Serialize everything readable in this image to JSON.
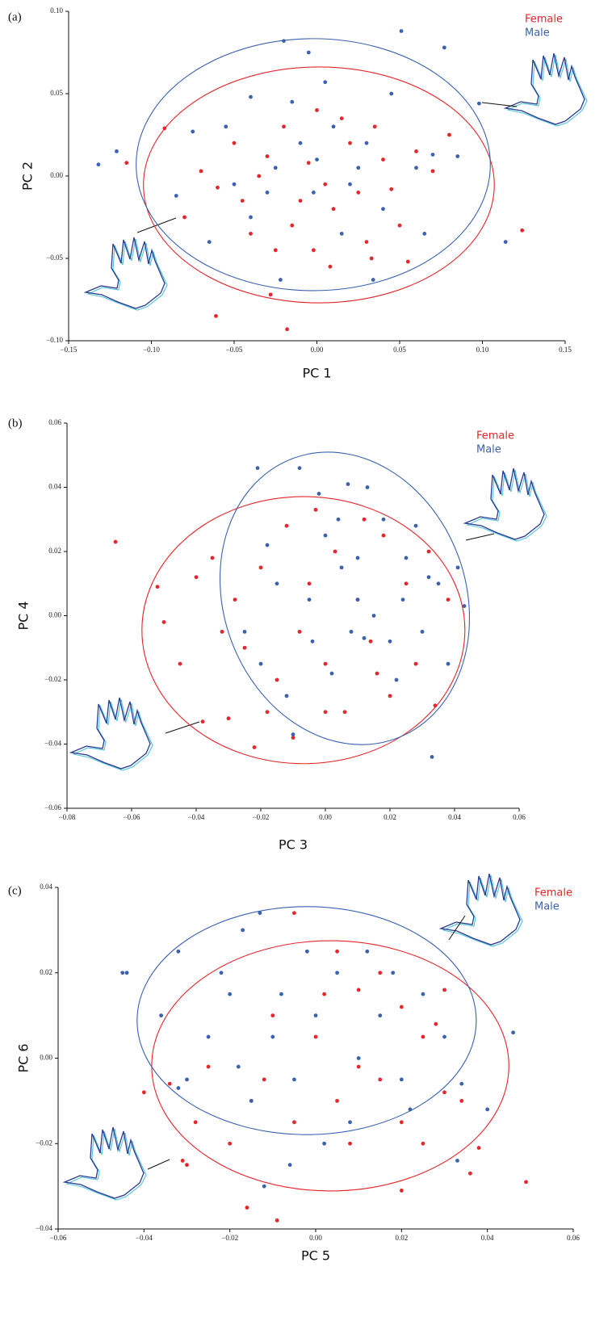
{
  "chart_data": [
    {
      "type": "scatter",
      "panel": "(a)",
      "xlabel": "PC 1",
      "ylabel": "PC 2",
      "legend": "upper right",
      "xlim": [
        -0.15,
        0.15
      ],
      "ylim": [
        -0.1,
        0.1
      ],
      "xticks": [
        {
          "value": -0.15,
          "label": "−0.15"
        },
        {
          "value": -0.1,
          "label": "−0.10"
        },
        {
          "value": -0.05,
          "label": "−0.05"
        },
        {
          "value": 0,
          "label": "0.00"
        },
        {
          "value": 0.05,
          "label": "0.05"
        },
        {
          "value": 0.1,
          "label": "0.10"
        },
        {
          "value": 0.15,
          "label": "0.15"
        }
      ],
      "yticks": [
        {
          "value": -0.1,
          "label": "−0.10"
        },
        {
          "value": -0.05,
          "label": "−0.05"
        },
        {
          "value": 0,
          "label": "0.00"
        },
        {
          "value": 0.05,
          "label": "0.05"
        },
        {
          "value": 0.1,
          "label": "0.10"
        }
      ],
      "series": [
        {
          "name": "Female",
          "color": "#e5262a",
          "x": [
            -0.018,
            -0.061,
            0.124,
            -0.115,
            -0.092,
            -0.08,
            0.07,
            -0.06,
            -0.04,
            -0.03,
            -0.02,
            -0.01,
            0.0,
            0.01,
            0.02,
            0.03,
            0.04,
            0.05,
            0.06,
            -0.05,
            -0.045,
            -0.025,
            -0.005,
            0.005,
            0.015,
            0.025,
            0.035,
            0.045,
            -0.035,
            -0.015,
            0.008,
            -0.07,
            0.08,
            -0.002,
            0.033,
            0.055,
            -0.028
          ],
          "values": [
            -0.093,
            -0.085,
            -0.033,
            0.008,
            0.029,
            -0.025,
            0.003,
            -0.007,
            -0.035,
            0.012,
            0.03,
            -0.015,
            0.04,
            -0.02,
            0.02,
            -0.04,
            0.01,
            -0.03,
            0.015,
            0.02,
            -0.015,
            -0.045,
            0.008,
            -0.005,
            0.035,
            -0.01,
            0.03,
            -0.008,
            0.0,
            -0.03,
            -0.055,
            0.003,
            0.025,
            -0.045,
            -0.05,
            -0.052,
            -0.072
          ],
          "ellipse": {
            "cx": 0.0012,
            "cy": -0.0054,
            "rx": 0.106,
            "ry": 0.0716,
            "angle": 0
          }
        },
        {
          "name": "Male",
          "color": "#3a62b0",
          "x": [
            0.051,
            0.077,
            -0.02,
            -0.132,
            -0.121,
            0.114,
            0.098,
            -0.022,
            0.034,
            -0.005,
            0.005,
            -0.04,
            0.045,
            -0.075,
            -0.085,
            0.065,
            0.07,
            -0.01,
            0.0,
            0.01,
            -0.03,
            0.02,
            -0.055,
            0.03,
            -0.04,
            0.04,
            -0.015,
            0.015,
            -0.065,
            0.06,
            -0.002,
            0.025,
            -0.05,
            0.085,
            -0.025
          ],
          "values": [
            0.088,
            0.078,
            0.082,
            0.007,
            0.015,
            -0.04,
            0.044,
            -0.063,
            -0.063,
            0.075,
            0.057,
            0.048,
            0.05,
            0.027,
            -0.012,
            -0.035,
            0.013,
            0.02,
            0.01,
            0.03,
            -0.01,
            -0.005,
            0.03,
            0.02,
            -0.025,
            -0.02,
            0.045,
            -0.035,
            -0.04,
            0.005,
            -0.01,
            0.005,
            -0.005,
            0.012,
            0.005
          ],
          "ellipse": {
            "cx": -0.0022,
            "cy": 0.0069,
            "rx": 0.107,
            "ry": 0.0765,
            "angle": 0
          }
        }
      ]
    },
    {
      "type": "scatter",
      "panel": "(b)",
      "xlabel": "PC 3",
      "ylabel": "PC 4",
      "legend": "upper right",
      "xlim": [
        -0.08,
        0.06
      ],
      "ylim": [
        -0.06,
        0.06
      ],
      "xticks": [
        {
          "value": -0.08,
          "label": "−0.08"
        },
        {
          "value": -0.06,
          "label": "−0.06"
        },
        {
          "value": -0.04,
          "label": "−0.04"
        },
        {
          "value": -0.02,
          "label": "−0.02"
        },
        {
          "value": 0,
          "label": "0.00"
        },
        {
          "value": 0.02,
          "label": "0.02"
        },
        {
          "value": 0.04,
          "label": "0.04"
        },
        {
          "value": 0.06,
          "label": "0.06"
        }
      ],
      "yticks": [
        {
          "value": -0.06,
          "label": "−0.06"
        },
        {
          "value": -0.04,
          "label": "−0.04"
        },
        {
          "value": -0.02,
          "label": "−0.02"
        },
        {
          "value": 0,
          "label": "0.00"
        },
        {
          "value": 0.02,
          "label": "0.02"
        },
        {
          "value": 0.04,
          "label": "0.04"
        },
        {
          "value": 0.06,
          "label": "0.06"
        }
      ],
      "series": [
        {
          "name": "Female",
          "color": "#e5262a",
          "x": [
            -0.065,
            -0.052,
            -0.05,
            -0.038,
            -0.022,
            -0.03,
            -0.035,
            -0.028,
            -0.025,
            -0.02,
            -0.015,
            -0.012,
            -0.008,
            -0.005,
            0.0,
            0.003,
            0.006,
            0.01,
            0.014,
            0.018,
            0.02,
            0.025,
            0.028,
            0.032,
            0.034,
            -0.018,
            -0.01,
            0.0,
            -0.032,
            -0.04,
            0.012,
            -0.003,
            0.038,
            -0.045,
            0.016
          ],
          "values": [
            0.023,
            0.009,
            -0.002,
            -0.033,
            -0.041,
            -0.032,
            0.018,
            0.005,
            -0.01,
            0.015,
            -0.02,
            0.028,
            -0.005,
            0.01,
            -0.015,
            0.02,
            -0.03,
            0.005,
            -0.008,
            0.025,
            -0.025,
            0.01,
            -0.015,
            0.02,
            -0.028,
            -0.03,
            -0.038,
            -0.03,
            -0.005,
            0.012,
            0.03,
            0.033,
            0.005,
            -0.015,
            -0.018
          ],
          "ellipse": {
            "cx": -0.0068,
            "cy": -0.0045,
            "rx": 0.05,
            "ry": 0.0416,
            "angle": 0
          }
        },
        {
          "name": "Male",
          "color": "#3a62b0",
          "x": [
            -0.021,
            -0.008,
            -0.002,
            0.007,
            0.013,
            0.041,
            0.043,
            0.033,
            -0.01,
            0.0,
            0.005,
            0.01,
            0.015,
            0.02,
            0.008,
            0.012,
            -0.005,
            0.025,
            0.03,
            -0.015,
            -0.025,
            0.018,
            0.022,
            0.035,
            -0.012,
            0.002,
            0.028,
            -0.018,
            0.038,
            0.01,
            -0.02,
            0.024,
            0.004,
            0.032,
            -0.004
          ],
          "values": [
            0.046,
            0.046,
            0.038,
            0.041,
            0.04,
            0.015,
            0.003,
            -0.044,
            -0.037,
            0.025,
            0.015,
            0.005,
            0.0,
            -0.008,
            -0.005,
            -0.007,
            0.005,
            0.018,
            -0.005,
            0.01,
            -0.005,
            0.03,
            -0.02,
            0.01,
            -0.025,
            -0.018,
            0.028,
            0.022,
            -0.015,
            0.018,
            -0.015,
            0.005,
            0.03,
            0.012,
            -0.008
          ],
          "ellipse": {
            "cx": 0.006,
            "cy": 0.0054,
            "rx": 0.0375,
            "ry": 0.0465,
            "angle": -20
          }
        }
      ]
    },
    {
      "type": "scatter",
      "panel": "(c)",
      "xlabel": "PC 5",
      "ylabel": "PC 6",
      "legend": "upper right",
      "xlim": [
        -0.06,
        0.06
      ],
      "ylim": [
        -0.04,
        0.04
      ],
      "xticks": [
        {
          "value": -0.06,
          "label": "−0.06"
        },
        {
          "value": -0.04,
          "label": "−0.04"
        },
        {
          "value": -0.02,
          "label": "−0.02"
        },
        {
          "value": 0,
          "label": "0.00"
        },
        {
          "value": 0.02,
          "label": "0.02"
        },
        {
          "value": 0.04,
          "label": "0.04"
        },
        {
          "value": 0.06,
          "label": "0.06"
        }
      ],
      "yticks": [
        {
          "value": -0.04,
          "label": "−0.04"
        },
        {
          "value": -0.02,
          "label": "−0.02"
        },
        {
          "value": 0,
          "label": "0.00"
        },
        {
          "value": 0.02,
          "label": "0.02"
        },
        {
          "value": 0.04,
          "label": "0.04"
        }
      ],
      "series": [
        {
          "name": "Female",
          "color": "#e5262a",
          "x": [
            0.049,
            0.038,
            0.036,
            0.02,
            -0.009,
            -0.016,
            -0.03,
            -0.031,
            -0.04,
            -0.034,
            -0.005,
            0.01,
            0.02,
            0.03,
            0.025,
            0.015,
            0.005,
            -0.005,
            -0.015,
            -0.025,
            0.0,
            0.01,
            0.02,
            0.03,
            -0.01,
            -0.02,
            0.005,
            0.015,
            -0.028,
            0.034,
            0.008,
            -0.012,
            0.025,
            0.002,
            0.028
          ],
          "values": [
            -0.029,
            -0.021,
            -0.027,
            -0.031,
            -0.038,
            -0.035,
            -0.025,
            -0.024,
            -0.008,
            -0.006,
            0.034,
            0.016,
            0.012,
            0.016,
            0.005,
            -0.005,
            -0.01,
            -0.015,
            -0.01,
            -0.002,
            0.005,
            -0.002,
            -0.015,
            -0.008,
            0.01,
            -0.02,
            0.025,
            0.02,
            -0.015,
            -0.01,
            -0.02,
            -0.005,
            -0.02,
            0.015,
            0.008
          ],
          "ellipse": {
            "cx": 0.0034,
            "cy": -0.0018,
            "rx": 0.0416,
            "ry": 0.0293,
            "angle": 0
          }
        },
        {
          "name": "Male",
          "color": "#3a62b0",
          "x": [
            -0.045,
            -0.044,
            -0.032,
            -0.013,
            -0.017,
            0.046,
            0.033,
            0.034,
            -0.036,
            -0.032,
            -0.012,
            -0.02,
            -0.01,
            0.0,
            0.01,
            -0.005,
            0.005,
            -0.025,
            0.015,
            0.02,
            -0.015,
            0.025,
            -0.03,
            0.008,
            -0.002,
            0.012,
            -0.018,
            0.03,
            0.002,
            -0.008,
            0.018,
            -0.022,
            0.022,
            0.04,
            -0.006
          ],
          "values": [
            0.02,
            0.02,
            0.025,
            0.034,
            0.03,
            0.006,
            -0.024,
            -0.006,
            0.01,
            -0.007,
            -0.03,
            0.015,
            0.005,
            0.01,
            0.0,
            -0.005,
            0.02,
            0.005,
            0.01,
            -0.005,
            -0.01,
            0.015,
            -0.005,
            -0.015,
            0.025,
            0.025,
            -0.002,
            0.005,
            -0.02,
            0.015,
            0.02,
            0.02,
            -0.012,
            -0.012,
            -0.025
          ],
          "ellipse": {
            "cx": -0.0021,
            "cy": 0.0088,
            "rx": 0.0395,
            "ry": 0.0267,
            "angle": 0
          }
        }
      ]
    }
  ]
}
